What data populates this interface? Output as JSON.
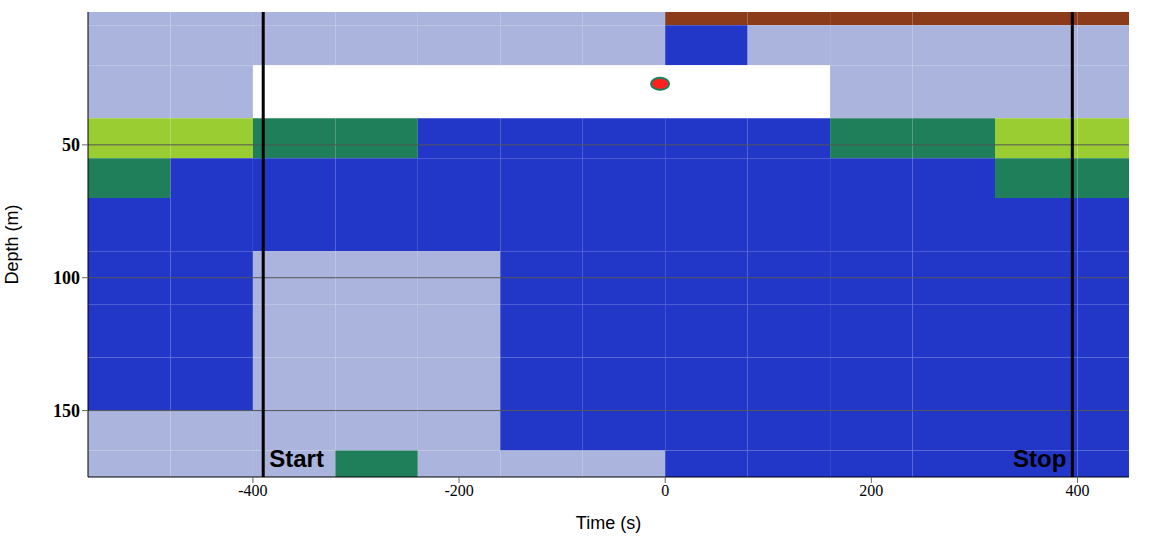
{
  "chart_data": {
    "type": "heatmap",
    "x_label": "Time (s)",
    "y_label": "Depth (m)",
    "xlim": [
      -560,
      450
    ],
    "xticks": [
      -400,
      -200,
      0,
      200,
      400
    ],
    "ylim": [
      0,
      175
    ],
    "yticks": [
      50,
      100,
      150
    ],
    "grid": true,
    "x_edges": [
      -560,
      -480,
      -400,
      -320,
      -240,
      -160,
      -80,
      0,
      80,
      160,
      240,
      320,
      400,
      450
    ],
    "y_edges": [
      0,
      5,
      20,
      40,
      55,
      70,
      90,
      110,
      130,
      150,
      165,
      175
    ],
    "cells": [
      [
        1,
        1,
        1,
        1,
        1,
        1,
        1,
        5,
        5,
        5,
        5,
        5,
        5
      ],
      [
        1,
        1,
        1,
        1,
        1,
        1,
        1,
        2,
        1,
        1,
        1,
        1,
        1
      ],
      [
        1,
        1,
        0,
        0,
        0,
        0,
        0,
        0,
        0,
        1,
        1,
        1,
        1
      ],
      [
        4,
        4,
        3,
        3,
        2,
        2,
        2,
        2,
        2,
        3,
        3,
        4,
        4
      ],
      [
        3,
        2,
        2,
        2,
        2,
        2,
        2,
        2,
        2,
        2,
        2,
        3,
        3
      ],
      [
        2,
        2,
        2,
        2,
        2,
        2,
        2,
        2,
        2,
        2,
        2,
        2,
        2
      ],
      [
        2,
        2,
        1,
        1,
        1,
        2,
        2,
        2,
        2,
        2,
        2,
        2,
        2
      ],
      [
        2,
        2,
        1,
        1,
        1,
        2,
        2,
        2,
        2,
        2,
        2,
        2,
        2
      ],
      [
        2,
        2,
        1,
        1,
        1,
        2,
        2,
        2,
        2,
        2,
        2,
        2,
        2
      ],
      [
        1,
        1,
        1,
        1,
        1,
        2,
        2,
        2,
        2,
        2,
        2,
        2,
        2
      ],
      [
        1,
        1,
        1,
        3,
        1,
        1,
        1,
        2,
        2,
        2,
        2,
        2,
        2
      ]
    ],
    "colors": [
      "#ffffff",
      "#aab4dc",
      "#2236c8",
      "#1e7f5a",
      "#9acd32",
      "#8b3a1a",
      "#ff2020"
    ],
    "targets": [
      {
        "x": -5,
        "y": 27
      }
    ],
    "markers": [
      {
        "x": -390,
        "label": "Start"
      },
      {
        "x": 395,
        "label": "Stop"
      }
    ]
  }
}
